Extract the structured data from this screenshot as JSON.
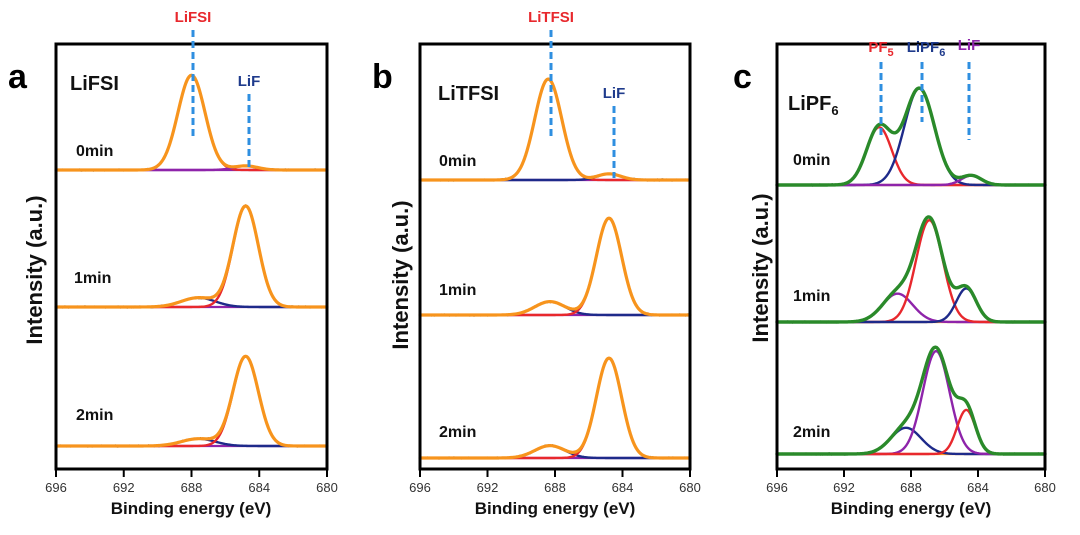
{
  "colors": {
    "LiF_component": "#8e24aa",
    "red_component": "#e8282d",
    "blue_component": "#1e2a8a",
    "orange_envelope": "#f7941d",
    "green_envelope": "#2a8a2a",
    "baseline": "#f7941d",
    "raw": "#222222",
    "marker": "#2f8fe0",
    "label_red": "#e8282d",
    "label_navy": "#1f3b8c",
    "label_purple": "#8e24aa"
  },
  "chart_data": [
    {
      "type": "line",
      "panel": "a",
      "title": "LiFSI",
      "xlabel": "Binding energy (eV)",
      "ylabel": "Intensity (a.u.)",
      "xlim": [
        696,
        680
      ],
      "xticks": [
        "696",
        "692",
        "688",
        "684",
        "680"
      ],
      "envelope_color": "orange",
      "peak_labels": [
        {
          "text": "LiFSI",
          "x": 687.8,
          "color": "red"
        },
        {
          "text": "LiF",
          "x": 684.8,
          "color": "navy"
        }
      ],
      "spectra": [
        {
          "label": "0min",
          "peaks": [
            {
              "name": "LiFSI",
              "center": 688.0,
              "height": 0.92,
              "width": 0.8,
              "color": "red"
            },
            {
              "name": "LiF",
              "center": 684.8,
              "height": 0.04,
              "width": 0.7,
              "color": "purple"
            }
          ]
        },
        {
          "label": "1min",
          "peaks": [
            {
              "name": "LiFSI",
              "center": 687.6,
              "height": 0.09,
              "width": 1.0,
              "color": "blue"
            },
            {
              "name": "LiF",
              "center": 684.8,
              "height": 0.98,
              "width": 0.75,
              "color": "red"
            }
          ]
        },
        {
          "label": "2min",
          "peaks": [
            {
              "name": "LiFSI",
              "center": 687.6,
              "height": 0.07,
              "width": 1.0,
              "color": "blue"
            },
            {
              "name": "LiF",
              "center": 684.8,
              "height": 0.87,
              "width": 0.75,
              "color": "red"
            }
          ]
        }
      ]
    },
    {
      "type": "line",
      "panel": "b",
      "title": "LiTFSI",
      "xlabel": "Binding energy (eV)",
      "ylabel": "Intensity (a.u.)",
      "xlim": [
        696,
        680
      ],
      "xticks": [
        "696",
        "692",
        "688",
        "684",
        "680"
      ],
      "envelope_color": "orange",
      "peak_labels": [
        {
          "text": "LiTFSI",
          "x": 688.4,
          "color": "red"
        },
        {
          "text": "LiF",
          "x": 684.8,
          "color": "navy"
        }
      ],
      "spectra": [
        {
          "label": "0min",
          "peaks": [
            {
              "name": "LiTFSI",
              "center": 688.4,
              "height": 0.98,
              "width": 0.8,
              "color": "red"
            },
            {
              "name": "LiF",
              "center": 684.8,
              "height": 0.06,
              "width": 0.7,
              "color": "blue"
            }
          ]
        },
        {
          "label": "1min",
          "peaks": [
            {
              "name": "LiTFSI",
              "center": 688.3,
              "height": 0.13,
              "width": 0.9,
              "color": "blue"
            },
            {
              "name": "LiF",
              "center": 684.8,
              "height": 0.94,
              "width": 0.75,
              "color": "red"
            }
          ]
        },
        {
          "label": "2min",
          "peaks": [
            {
              "name": "LiTFSI",
              "center": 688.3,
              "height": 0.12,
              "width": 0.9,
              "color": "blue"
            },
            {
              "name": "LiF",
              "center": 684.8,
              "height": 0.97,
              "width": 0.75,
              "color": "red"
            }
          ]
        }
      ]
    },
    {
      "type": "line",
      "panel": "c",
      "title": "LiPF6",
      "xlabel": "Binding energy (eV)",
      "ylabel": "Intensity (a.u.)",
      "xlim": [
        696,
        680
      ],
      "xticks": [
        "696",
        "692",
        "688",
        "684",
        "680"
      ],
      "envelope_color": "green",
      "peak_labels": [
        {
          "text": "PF5",
          "x": 689.8,
          "color": "red"
        },
        {
          "text": "LiPF6",
          "x": 687.3,
          "color": "navy"
        },
        {
          "text": "LiF",
          "x": 684.5,
          "color": "purple"
        }
      ],
      "spectra": [
        {
          "label": "0min",
          "peaks": [
            {
              "name": "PF5",
              "center": 689.9,
              "height": 0.55,
              "width": 0.75,
              "color": "red"
            },
            {
              "name": "LiPF6",
              "center": 687.5,
              "height": 0.92,
              "width": 0.9,
              "color": "blue"
            },
            {
              "name": "LiF",
              "center": 684.4,
              "height": 0.09,
              "width": 0.6,
              "color": "purple"
            }
          ]
        },
        {
          "label": "1min",
          "peaks": [
            {
              "name": "PF5",
              "center": 688.8,
              "height": 0.27,
              "width": 0.9,
              "color": "purple"
            },
            {
              "name": "LiPF6",
              "center": 686.9,
              "height": 0.97,
              "width": 0.8,
              "color": "red"
            },
            {
              "name": "LiF",
              "center": 684.7,
              "height": 0.32,
              "width": 0.6,
              "color": "blue"
            }
          ]
        },
        {
          "label": "2min",
          "peaks": [
            {
              "name": "PF5",
              "center": 688.3,
              "height": 0.25,
              "width": 0.9,
              "color": "blue"
            },
            {
              "name": "LiPF6",
              "center": 686.5,
              "height": 0.98,
              "width": 0.8,
              "color": "purple"
            },
            {
              "name": "LiF",
              "center": 684.7,
              "height": 0.42,
              "width": 0.55,
              "color": "red"
            }
          ]
        }
      ]
    }
  ]
}
